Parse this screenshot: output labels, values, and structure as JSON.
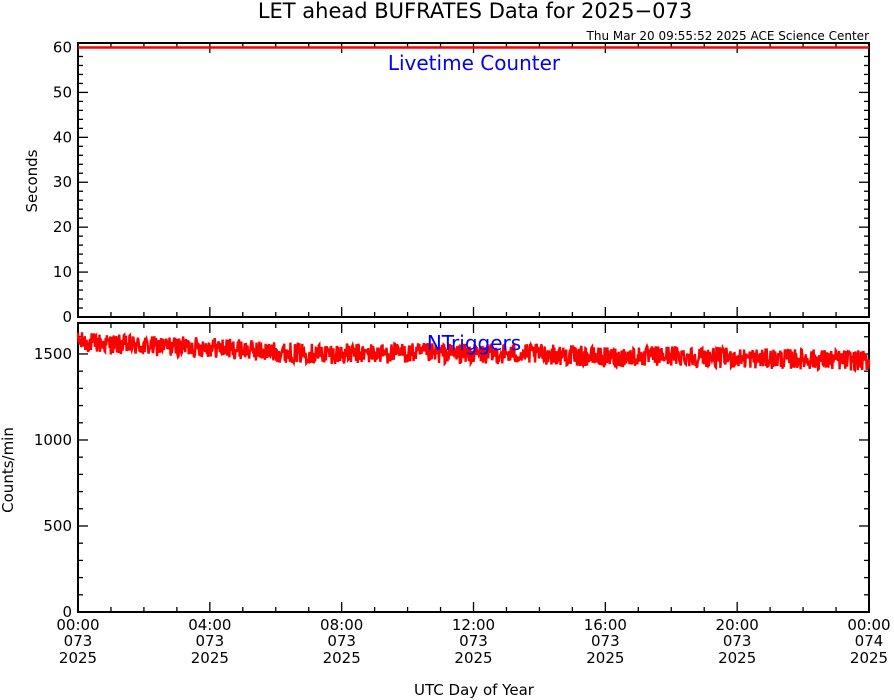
{
  "title": "LET ahead BUFRATES Data for 2025−073",
  "subtitle": "Thu Mar 20 09:55:52 2025 ACE Science Center",
  "xlabel": "UTC Day of Year",
  "colors": {
    "trace": "#ff0000",
    "panel_label": "#0000ff",
    "axes": "#000000"
  },
  "x_ticks": [
    {
      "time": "00:00",
      "day": "073",
      "year": "2025"
    },
    {
      "time": "04:00",
      "day": "073",
      "year": "2025"
    },
    {
      "time": "08:00",
      "day": "073",
      "year": "2025"
    },
    {
      "time": "12:00",
      "day": "073",
      "year": "2025"
    },
    {
      "time": "16:00",
      "day": "073",
      "year": "2025"
    },
    {
      "time": "20:00",
      "day": "073",
      "year": "2025"
    },
    {
      "time": "00:00",
      "day": "074",
      "year": "2025"
    }
  ],
  "chart_data": [
    {
      "type": "line",
      "panel_label": "Livetime Counter",
      "ylabel": "Seconds",
      "xlim": [
        "2025-073 00:00",
        "2025-074 00:00"
      ],
      "ylim": [
        0,
        61
      ],
      "y_ticks": [
        0,
        10,
        20,
        30,
        40,
        50,
        60
      ],
      "series": [
        {
          "x": [
            "2025-073 00:00",
            "2025-074 00:00"
          ],
          "values": [
            60,
            60
          ]
        }
      ]
    },
    {
      "type": "line",
      "panel_label": "NTriggers",
      "ylabel": "Counts/min",
      "xlim": [
        "2025-073 00:00",
        "2025-074 00:00"
      ],
      "ylim": [
        0,
        1680
      ],
      "y_ticks": [
        0,
        500,
        1000,
        1500
      ],
      "series": [
        {
          "x": [
            "2025-073 00:00",
            "2025-073 02:00",
            "2025-073 04:00",
            "2025-073 06:00",
            "2025-073 08:00",
            "2025-073 10:00",
            "2025-073 12:00",
            "2025-073 14:00",
            "2025-073 16:00",
            "2025-073 18:00",
            "2025-073 20:00",
            "2025-073 22:00",
            "2025-074 00:00"
          ],
          "values": [
            1570,
            1545,
            1540,
            1510,
            1500,
            1505,
            1500,
            1500,
            1480,
            1490,
            1475,
            1470,
            1460
          ],
          "spread": 60
        }
      ]
    }
  ]
}
